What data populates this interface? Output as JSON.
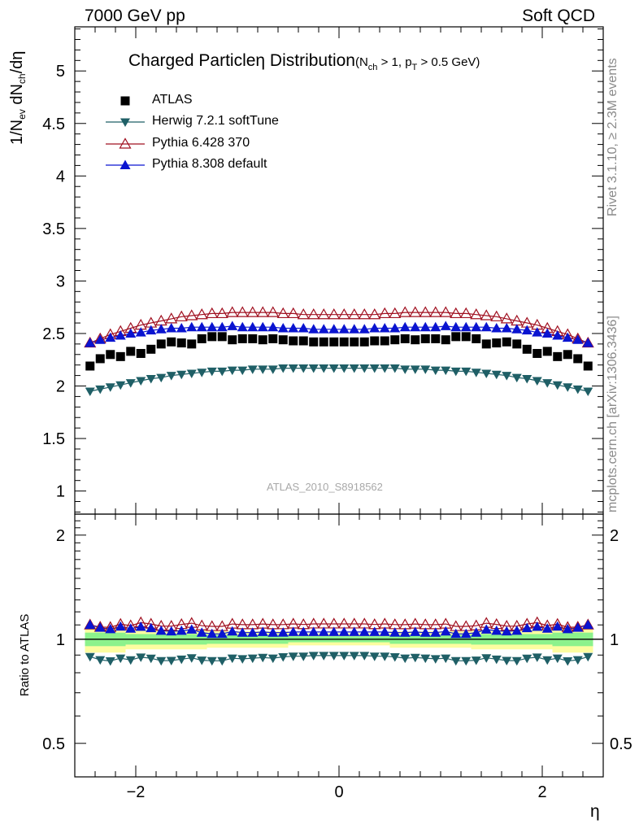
{
  "header": {
    "left": "7000 GeV pp",
    "right": "Soft QCD"
  },
  "side_labels": {
    "rivet": "Rivet 3.1.10, ≥ 2.3M events",
    "mcplots": "mcplots.cern.ch [arXiv:1306.3436]"
  },
  "title": {
    "main": "Charged Particleη Distribution",
    "cuts_a": "(N",
    "cuts_a_sub": "ch",
    "cuts_b": " > 1, p",
    "cuts_b_sub": "T",
    "cuts_c": " > 0.5 GeV)"
  },
  "axis": {
    "ylabel_a": "1/N",
    "ylabel_sub1": "ev",
    "ylabel_b": " dN",
    "ylabel_sub2": "ch",
    "ylabel_c": "/dη",
    "ratio_ylabel": "Ratio to ATLAS",
    "xlabel": "η"
  },
  "watermark": "ATLAS_2010_S8918562",
  "legend": [
    "ATLAS",
    "Herwig 7.2.1 softTune",
    "Pythia 6.428 370",
    "Pythia 8.308 default"
  ],
  "colors": {
    "atlas": "#000000",
    "herwig": "#1f5f66",
    "pythia6": "#a01020",
    "pythia8": "#0a14d0",
    "band_inner": "#8cf28c",
    "band_outer": "#fdfda0"
  },
  "chart_data": {
    "type": "scatter",
    "x": [
      -2.45,
      -2.35,
      -2.25,
      -2.15,
      -2.05,
      -1.95,
      -1.85,
      -1.75,
      -1.65,
      -1.55,
      -1.45,
      -1.35,
      -1.25,
      -1.15,
      -1.05,
      -0.95,
      -0.85,
      -0.75,
      -0.65,
      -0.55,
      -0.45,
      -0.35,
      -0.25,
      -0.15,
      -0.05,
      0.05,
      0.15,
      0.25,
      0.35,
      0.45,
      0.55,
      0.65,
      0.75,
      0.85,
      0.95,
      1.05,
      1.15,
      1.25,
      1.35,
      1.45,
      1.55,
      1.65,
      1.75,
      1.85,
      1.95,
      2.05,
      2.15,
      2.25,
      2.35,
      2.45
    ],
    "series": [
      {
        "name": "ATLAS",
        "marker": "square",
        "values": [
          2.19,
          2.26,
          2.3,
          2.28,
          2.33,
          2.31,
          2.35,
          2.4,
          2.42,
          2.41,
          2.4,
          2.45,
          2.47,
          2.47,
          2.44,
          2.45,
          2.45,
          2.44,
          2.45,
          2.44,
          2.43,
          2.43,
          2.42,
          2.42,
          2.42,
          2.42,
          2.42,
          2.42,
          2.43,
          2.43,
          2.44,
          2.45,
          2.44,
          2.45,
          2.45,
          2.44,
          2.47,
          2.47,
          2.45,
          2.4,
          2.41,
          2.42,
          2.4,
          2.35,
          2.31,
          2.33,
          2.28,
          2.3,
          2.26,
          2.19
        ]
      },
      {
        "name": "Herwig 7.2.1 softTune",
        "marker": "triangle-down",
        "values": [
          1.95,
          1.97,
          1.99,
          2.01,
          2.03,
          2.05,
          2.07,
          2.08,
          2.1,
          2.11,
          2.12,
          2.13,
          2.14,
          2.14,
          2.15,
          2.15,
          2.16,
          2.16,
          2.16,
          2.17,
          2.17,
          2.17,
          2.17,
          2.17,
          2.17,
          2.17,
          2.17,
          2.17,
          2.17,
          2.17,
          2.17,
          2.16,
          2.16,
          2.16,
          2.15,
          2.15,
          2.14,
          2.14,
          2.13,
          2.12,
          2.11,
          2.1,
          2.08,
          2.07,
          2.05,
          2.03,
          2.01,
          1.99,
          1.97,
          1.95
        ]
      },
      {
        "name": "Pythia 6.428 370",
        "marker": "triangle-up-open",
        "values": [
          2.41,
          2.45,
          2.49,
          2.52,
          2.55,
          2.58,
          2.6,
          2.62,
          2.64,
          2.66,
          2.67,
          2.68,
          2.69,
          2.69,
          2.7,
          2.7,
          2.7,
          2.7,
          2.7,
          2.69,
          2.69,
          2.68,
          2.68,
          2.68,
          2.68,
          2.68,
          2.68,
          2.68,
          2.68,
          2.69,
          2.69,
          2.7,
          2.7,
          2.7,
          2.7,
          2.7,
          2.69,
          2.69,
          2.68,
          2.67,
          2.66,
          2.64,
          2.62,
          2.6,
          2.58,
          2.55,
          2.52,
          2.49,
          2.45,
          2.41
        ]
      },
      {
        "name": "Pythia 8.308 default",
        "marker": "triangle-up",
        "values": [
          2.41,
          2.44,
          2.46,
          2.48,
          2.5,
          2.51,
          2.53,
          2.54,
          2.55,
          2.55,
          2.56,
          2.56,
          2.56,
          2.56,
          2.57,
          2.56,
          2.56,
          2.56,
          2.56,
          2.55,
          2.55,
          2.55,
          2.54,
          2.54,
          2.54,
          2.54,
          2.54,
          2.54,
          2.55,
          2.55,
          2.55,
          2.56,
          2.56,
          2.56,
          2.56,
          2.57,
          2.56,
          2.56,
          2.56,
          2.56,
          2.55,
          2.55,
          2.54,
          2.53,
          2.51,
          2.5,
          2.48,
          2.46,
          2.44,
          2.41
        ]
      }
    ],
    "band": {
      "edges": [
        -2.5,
        -2.1,
        -1.3,
        -0.5,
        0.5,
        1.3,
        2.1,
        2.5
      ],
      "inner": [
        0.045,
        0.035,
        0.03,
        0.02,
        0.03,
        0.035,
        0.045
      ],
      "outer": [
        0.085,
        0.065,
        0.055,
        0.04,
        0.055,
        0.065,
        0.085
      ]
    },
    "main_plot": {
      "xlim": [
        -2.6,
        2.6
      ],
      "ylim": [
        0.78,
        5.42
      ],
      "x_ticks": [
        -2,
        0,
        2
      ],
      "x_tick_labels": [
        "−2",
        "0",
        "2"
      ],
      "y_ticks": [
        1,
        1.5,
        2,
        2.5,
        3,
        3.5,
        4,
        4.5,
        5
      ],
      "y_tick_labels": [
        "1",
        "1.5",
        "2",
        "2.5",
        "3",
        "3.5",
        "4",
        "4.5",
        "5"
      ]
    },
    "ratio_plot": {
      "ylim": [
        0.4,
        2.3
      ],
      "y_ticks": [
        0.5,
        1,
        2
      ],
      "y_tick_labels": [
        "0.5",
        "1",
        "2"
      ],
      "reference_line": 1
    },
    "grid": false,
    "legend_position": "top-left"
  }
}
